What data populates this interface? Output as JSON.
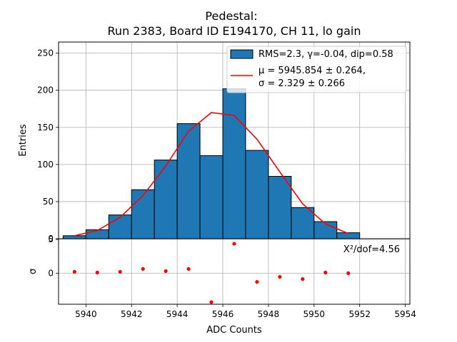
{
  "chart_data": [
    {
      "type": "bar",
      "title_line1": "Pedestal:",
      "title_line2": "Run 2383, Board ID E194170, CH 11, lo gain",
      "ylabel": "Entries",
      "xlim": [
        5938.8,
        5954.2
      ],
      "ylim": [
        0,
        265
      ],
      "yticks": [
        0,
        50,
        100,
        150,
        200,
        250
      ],
      "grid": true,
      "bin_edges": [
        5939,
        5940,
        5941,
        5942,
        5943,
        5944,
        5945,
        5946,
        5947,
        5948,
        5949,
        5950,
        5951,
        5952
      ],
      "counts": [
        4,
        12,
        32,
        66,
        106,
        155,
        112,
        202,
        119,
        84,
        42,
        23,
        8
      ],
      "bar_color": "#1f77b4",
      "fit_color": "#ff0000",
      "fit": {
        "x": [
          5939.5,
          5940.5,
          5941.5,
          5942.5,
          5943.5,
          5944.5,
          5945.5,
          5946.5,
          5947.5,
          5948.5,
          5949.5,
          5950.5,
          5951.5
        ],
        "y": [
          4,
          11,
          29,
          58,
          98,
          145,
          170,
          166,
          134,
          90,
          47,
          20,
          7
        ]
      },
      "legend": {
        "location": "top-right",
        "hist_label": "RMS=2.3, γ=-0.04, dip=0.58",
        "fit_label_line1": "μ = 5945.854 ± 0.264,",
        "fit_label_line2": "σ = 2.329 ± 0.266"
      }
    },
    {
      "type": "scatter",
      "xlabel": "ADC Counts",
      "ylabel": "σ",
      "xlim": [
        5938.8,
        5954.2
      ],
      "ylim": [
        -4.3,
        4.8
      ],
      "xticks": [
        5940,
        5942,
        5944,
        5946,
        5948,
        5950,
        5952,
        5954
      ],
      "ytick_labels": [
        {
          "value": 0,
          "label": "0"
        },
        {
          "value": 4.7,
          "label": "5"
        }
      ],
      "grid": true,
      "point_color": "#ff0000",
      "x": [
        5939.5,
        5940.5,
        5941.5,
        5942.5,
        5943.5,
        5944.5,
        5945.5,
        5946.5,
        5947.5,
        5948.5,
        5949.5,
        5950.5,
        5951.5
      ],
      "y": [
        0.2,
        0.1,
        0.2,
        0.6,
        0.3,
        0.6,
        -4.0,
        4.1,
        -1.2,
        -0.5,
        -0.8,
        0.1,
        0.0
      ],
      "annotation": "X²/dof=4.56"
    }
  ]
}
